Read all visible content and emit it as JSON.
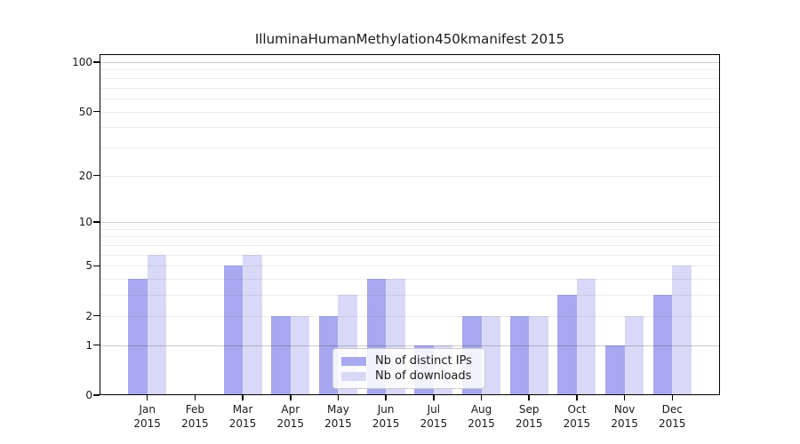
{
  "figure": {
    "title": "IlluminaHumanMethylation450kmanifest 2015"
  },
  "chart_data": {
    "type": "bar",
    "title": "IlluminaHumanMethylation450kmanifest 2015",
    "categories": [
      "Jan",
      "Feb",
      "Mar",
      "Apr",
      "May",
      "Jun",
      "Jul",
      "Aug",
      "Sep",
      "Oct",
      "Nov",
      "Dec"
    ],
    "category_year": "2015",
    "series": [
      {
        "name": "Nb of distinct IPs",
        "color": "#a8a8f0",
        "values": [
          4,
          0,
          5,
          2,
          2,
          4,
          1,
          2,
          2,
          3,
          1,
          3
        ]
      },
      {
        "name": "Nb of downloads",
        "color": "#d9d9f7",
        "values": [
          6,
          0,
          6,
          2,
          3,
          4,
          1,
          2,
          2,
          4,
          2,
          5
        ]
      }
    ],
    "xlabel": "",
    "ylabel": "",
    "yscale": "log1p",
    "ylim": [
      0,
      110
    ],
    "yticks": [
      0,
      1,
      2,
      5,
      10,
      20,
      50,
      100
    ],
    "gridlines": {
      "major": [
        1,
        10,
        100
      ],
      "minor": [
        2,
        3,
        4,
        5,
        6,
        7,
        8,
        9,
        20,
        30,
        40,
        50,
        60,
        70,
        80,
        90
      ]
    },
    "grid": true,
    "legend_position": "lower center"
  },
  "colors": {
    "background": "#ffffff",
    "bar_distinct_ips": "#a8a8f0",
    "bar_downloads": "#d9d9f7",
    "grid_major": "rgba(0,0,0,0.20)",
    "grid_minor": "rgba(0,0,0,0.07)",
    "axis": "#000000",
    "text": "#1a1a1a",
    "legend_bg": "rgba(255,255,255,0.85)",
    "legend_border": "#cccccc"
  }
}
